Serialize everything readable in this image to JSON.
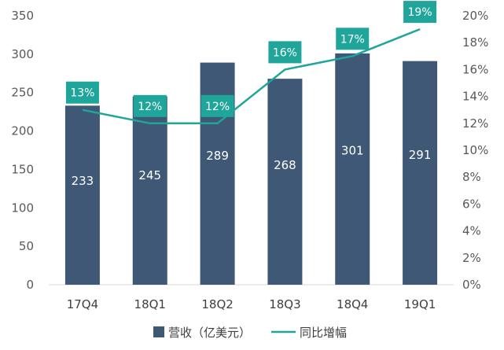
{
  "chart_data": {
    "type": "bar",
    "categories": [
      "17Q4",
      "18Q1",
      "18Q2",
      "18Q3",
      "18Q4",
      "19Q1"
    ],
    "series": [
      {
        "name": "营收（亿美元）",
        "type": "bar",
        "axis": "left",
        "values": [
          233,
          245,
          289,
          268,
          301,
          291
        ],
        "labels": [
          "233",
          "245",
          "289",
          "268",
          "301",
          "291"
        ],
        "color": "#3f5876"
      },
      {
        "name": "同比增幅",
        "type": "line",
        "axis": "right",
        "values": [
          13,
          12,
          12,
          16,
          17,
          19
        ],
        "labels": [
          "13%",
          "12%",
          "12%",
          "16%",
          "17%",
          "19%"
        ],
        "color": "#1fa59a"
      }
    ],
    "left_axis": {
      "ylim": [
        0,
        350
      ],
      "ticks": [
        "0",
        "50",
        "100",
        "150",
        "200",
        "250",
        "300",
        "350"
      ]
    },
    "right_axis": {
      "ylim": [
        0,
        20
      ],
      "ticks": [
        "0%",
        "2%",
        "4%",
        "6%",
        "8%",
        "10%",
        "12%",
        "14%",
        "16%",
        "18%",
        "20%"
      ]
    },
    "legend": {
      "position": "bottom"
    },
    "title": "",
    "xlabel": "",
    "ylabel": ""
  }
}
